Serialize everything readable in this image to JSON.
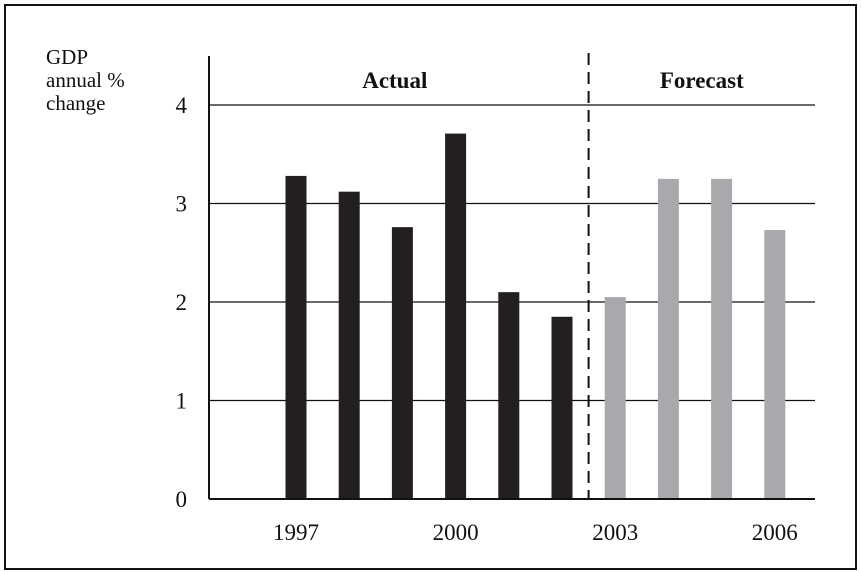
{
  "chart_data": {
    "type": "bar",
    "title": "",
    "ylabel_lines": [
      "GDP",
      "annual %",
      "change"
    ],
    "xlabel": "",
    "ylim": [
      0,
      4
    ],
    "yticks": [
      "0",
      "1",
      "2",
      "3",
      "4"
    ],
    "grid": true,
    "categories": [
      "1997",
      "1998",
      "1999",
      "2000",
      "2001",
      "2002",
      "2003",
      "2004",
      "2005",
      "2006"
    ],
    "x_tick_labels": [
      "1997",
      "2000",
      "2003",
      "2006"
    ],
    "regions": [
      {
        "label": "Actual",
        "start": "1997",
        "end": "2002"
      },
      {
        "label": "Forecast",
        "start": "2003",
        "end": "2006"
      }
    ],
    "series": [
      {
        "values": [
          3.28,
          3.12,
          2.76,
          3.71,
          2.1,
          1.85,
          null,
          null,
          null,
          null
        ],
        "color": "#231f20"
      },
      {
        "values": [
          null,
          null,
          null,
          null,
          null,
          null,
          2.05,
          3.25,
          3.25,
          2.73
        ],
        "color": "#a7a9ac"
      }
    ]
  }
}
